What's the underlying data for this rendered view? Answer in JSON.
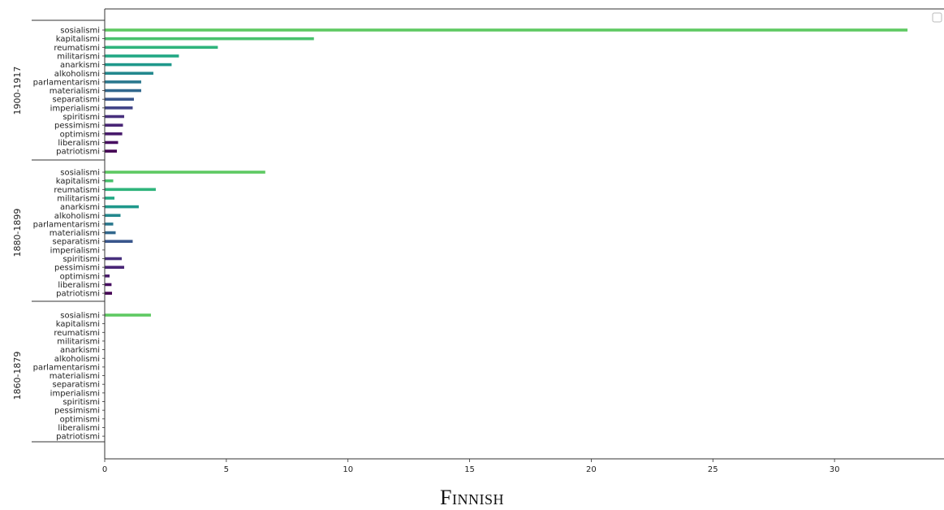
{
  "chart_data": {
    "type": "bar",
    "orientation": "horizontal",
    "title": "Finnish",
    "xlim": [
      0,
      34.5
    ],
    "xticks": [
      0,
      5,
      10,
      15,
      20,
      25,
      30
    ],
    "grid": false,
    "legend": "top-right",
    "categories": [
      "sosialismi",
      "kapitalismi",
      "reumatismi",
      "militarismi",
      "anarkismi",
      "alkoholismi",
      "parlamentarismi",
      "materialismi",
      "separatismi",
      "imperialismi",
      "spiritismi",
      "pessimismi",
      "optimismi",
      "liberalismi",
      "patriotismi"
    ],
    "colors": [
      "#5ec962",
      "#4ac16d",
      "#2fb47c",
      "#22a884",
      "#1f988b",
      "#23888e",
      "#2a788e",
      "#31688e",
      "#39568c",
      "#414487",
      "#472f7d",
      "#482475",
      "#481a6c",
      "#470e61",
      "#440154"
    ],
    "groups": [
      {
        "label": "1900-1917",
        "values": [
          33.0,
          8.6,
          4.65,
          3.05,
          2.75,
          2.0,
          1.5,
          1.5,
          1.2,
          1.15,
          0.8,
          0.75,
          0.72,
          0.55,
          0.5
        ]
      },
      {
        "label": "1880-1899",
        "values": [
          6.6,
          0.35,
          2.1,
          0.4,
          1.4,
          0.65,
          0.35,
          0.45,
          1.15,
          0.0,
          0.7,
          0.8,
          0.2,
          0.28,
          0.3
        ]
      },
      {
        "label": "1860-1879",
        "values": [
          1.9,
          0,
          0,
          0,
          0,
          0,
          0,
          0,
          0,
          0,
          0,
          0,
          0,
          0,
          0
        ]
      }
    ]
  },
  "caption": "Finnish"
}
